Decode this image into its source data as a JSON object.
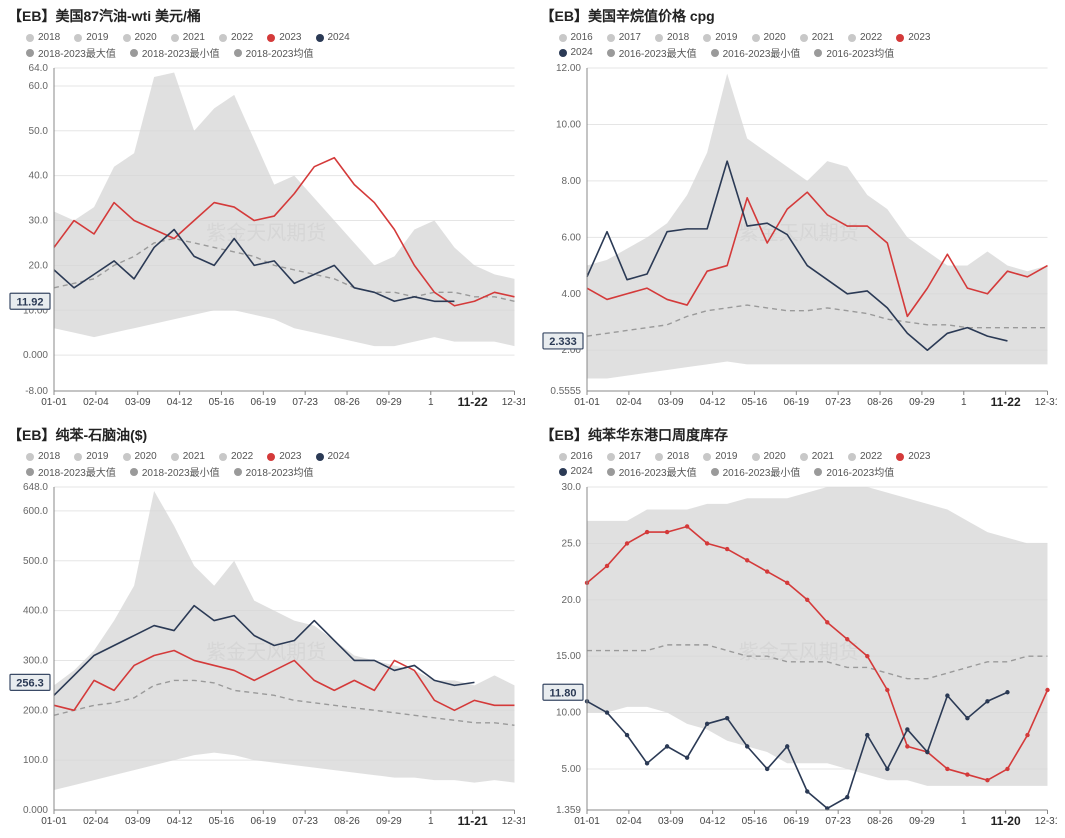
{
  "watermark": "紫金天风期货",
  "common": {
    "x_labels": [
      "01-01",
      "02-04",
      "03-09",
      "04-12",
      "05-16",
      "06-19",
      "07-23",
      "08-26",
      "09-29",
      "1",
      "",
      "12-31"
    ],
    "x_highlight_color": "#222",
    "x_highlight_weight": "bold",
    "tick_color": "#666",
    "tick_fontsize": 10,
    "grid_color": "#e5e5e5",
    "axis_color": "#888",
    "band_fill": "#d6d6d6",
    "band_opacity": 0.75,
    "avg_color": "#9a9a9a",
    "avg_dash": "5,4",
    "year_faded_color": "#c8c8c8",
    "series_2023_color": "#d43a3a",
    "series_2024_color": "#2b3a55",
    "line_width": 1.6,
    "badge_bg": "#e8ecef",
    "badge_border": "#3a4a66",
    "badge_text_color": "#2b3a55"
  },
  "panels": [
    {
      "title": "【EB】美国87汽油-wti 美元/桶",
      "legend_rows": [
        [
          {
            "label": "2018",
            "color": "#c8c8c8"
          },
          {
            "label": "2019",
            "color": "#c8c8c8"
          },
          {
            "label": "2020",
            "color": "#c8c8c8"
          },
          {
            "label": "2021",
            "color": "#c8c8c8"
          },
          {
            "label": "2022",
            "color": "#c8c8c8"
          },
          {
            "label": "2023",
            "color": "#d43a3a"
          },
          {
            "label": "2024",
            "color": "#2b3a55"
          }
        ],
        [
          {
            "label": "2018-2023最大值",
            "color": "#9a9a9a"
          },
          {
            "label": "2018-2023最小值",
            "color": "#9a9a9a"
          },
          {
            "label": "2018-2023均值",
            "color": "#9a9a9a"
          }
        ]
      ],
      "y": {
        "ticks": [
          -8,
          0,
          10,
          20,
          30,
          40,
          50,
          60,
          64
        ]
      },
      "highlight_x_label": "11-22",
      "badge": "11.92",
      "band_max": [
        32,
        30,
        33,
        42,
        45,
        62,
        63,
        50,
        55,
        58,
        48,
        38,
        40,
        35,
        30,
        25,
        20,
        22,
        28,
        30,
        24,
        20,
        18,
        17
      ],
      "band_min": [
        6,
        5,
        4,
        5,
        6,
        7,
        8,
        9,
        10,
        10,
        9,
        8,
        6,
        5,
        4,
        3,
        2,
        2,
        3,
        4,
        3,
        3,
        3,
        2
      ],
      "avg": [
        15,
        16,
        17,
        20,
        22,
        25,
        26,
        25,
        24,
        23,
        22,
        20,
        19,
        18,
        17,
        15,
        14,
        14,
        13,
        14,
        14,
        13,
        13,
        12
      ],
      "s2023": [
        24,
        30,
        27,
        34,
        30,
        28,
        26,
        30,
        34,
        33,
        30,
        31,
        36,
        42,
        44,
        38,
        34,
        28,
        20,
        14,
        11,
        12,
        14,
        13
      ],
      "s2024": [
        19,
        15,
        18,
        21,
        17,
        24,
        28,
        22,
        20,
        26,
        20,
        21,
        16,
        18,
        20,
        15,
        14,
        12,
        13,
        12,
        12,
        null,
        null,
        null
      ]
    },
    {
      "title": "【EB】美国辛烷值价格 cpg",
      "legend_rows": [
        [
          {
            "label": "2016",
            "color": "#c8c8c8"
          },
          {
            "label": "2017",
            "color": "#c8c8c8"
          },
          {
            "label": "2018",
            "color": "#c8c8c8"
          },
          {
            "label": "2019",
            "color": "#c8c8c8"
          },
          {
            "label": "2020",
            "color": "#c8c8c8"
          },
          {
            "label": "2021",
            "color": "#c8c8c8"
          },
          {
            "label": "2022",
            "color": "#c8c8c8"
          },
          {
            "label": "2023",
            "color": "#d43a3a"
          }
        ],
        [
          {
            "label": "2024",
            "color": "#2b3a55"
          },
          {
            "label": "2016-2023最大值",
            "color": "#9a9a9a"
          },
          {
            "label": "2016-2023最小值",
            "color": "#9a9a9a"
          },
          {
            "label": "2016-2023均值",
            "color": "#9a9a9a"
          }
        ]
      ],
      "y": {
        "ticks": [
          0.5555,
          2,
          4,
          6,
          8,
          10,
          12
        ]
      },
      "highlight_x_label": "11-22",
      "badge": "2.333",
      "band_max": [
        5,
        5.2,
        5.6,
        6.0,
        6.5,
        7.5,
        9.0,
        11.8,
        9.5,
        9.0,
        8.5,
        8.0,
        8.7,
        8.5,
        7.5,
        7.0,
        6.0,
        5.5,
        5.0,
        5.0,
        5.5,
        5.0,
        4.8,
        5.0
      ],
      "band_min": [
        1.0,
        1.0,
        1.1,
        1.2,
        1.3,
        1.4,
        1.5,
        1.6,
        1.5,
        1.5,
        1.5,
        1.5,
        1.5,
        1.5,
        1.5,
        1.5,
        1.5,
        1.5,
        1.5,
        1.5,
        1.5,
        1.5,
        1.5,
        1.5
      ],
      "avg": [
        2.5,
        2.6,
        2.7,
        2.8,
        2.9,
        3.2,
        3.4,
        3.5,
        3.6,
        3.5,
        3.4,
        3.4,
        3.5,
        3.4,
        3.3,
        3.1,
        3.0,
        2.9,
        2.9,
        2.8,
        2.8,
        2.8,
        2.8,
        2.8
      ],
      "s2023": [
        4.2,
        3.8,
        4.0,
        4.2,
        3.8,
        3.6,
        4.8,
        5.0,
        7.4,
        5.8,
        7.0,
        7.6,
        6.8,
        6.4,
        6.4,
        5.8,
        3.2,
        4.2,
        5.4,
        4.2,
        4.0,
        4.8,
        4.6,
        5.0
      ],
      "s2024": [
        4.6,
        6.2,
        4.5,
        4.7,
        6.2,
        6.3,
        6.3,
        8.7,
        6.4,
        6.5,
        6.1,
        5.0,
        4.5,
        4.0,
        4.1,
        3.5,
        2.6,
        2.0,
        2.6,
        2.8,
        2.5,
        2.33,
        null,
        null
      ]
    },
    {
      "title": "【EB】纯苯-石脑油($)",
      "legend_rows": [
        [
          {
            "label": "2018",
            "color": "#c8c8c8"
          },
          {
            "label": "2019",
            "color": "#c8c8c8"
          },
          {
            "label": "2020",
            "color": "#c8c8c8"
          },
          {
            "label": "2021",
            "color": "#c8c8c8"
          },
          {
            "label": "2022",
            "color": "#c8c8c8"
          },
          {
            "label": "2023",
            "color": "#d43a3a"
          },
          {
            "label": "2024",
            "color": "#2b3a55"
          }
        ],
        [
          {
            "label": "2018-2023最大值",
            "color": "#9a9a9a"
          },
          {
            "label": "2018-2023最小值",
            "color": "#9a9a9a"
          },
          {
            "label": "2018-2023均值",
            "color": "#9a9a9a"
          }
        ]
      ],
      "y": {
        "ticks": [
          0,
          100,
          200,
          300,
          400,
          500,
          600,
          648
        ]
      },
      "highlight_x_label": "11-21",
      "badge": "256.3",
      "band_max": [
        250,
        280,
        320,
        380,
        450,
        640,
        570,
        490,
        450,
        500,
        420,
        400,
        380,
        370,
        340,
        310,
        300,
        290,
        280,
        260,
        260,
        250,
        270,
        250
      ],
      "band_min": [
        40,
        50,
        60,
        70,
        80,
        90,
        100,
        110,
        115,
        110,
        100,
        95,
        90,
        85,
        80,
        75,
        70,
        65,
        65,
        60,
        60,
        55,
        60,
        55
      ],
      "avg": [
        190,
        200,
        210,
        215,
        225,
        250,
        260,
        260,
        255,
        240,
        235,
        230,
        220,
        215,
        210,
        205,
        200,
        195,
        190,
        185,
        180,
        175,
        175,
        170
      ],
      "s2023": [
        210,
        200,
        260,
        240,
        290,
        310,
        320,
        300,
        290,
        280,
        260,
        280,
        300,
        260,
        240,
        260,
        240,
        300,
        280,
        220,
        200,
        220,
        210,
        210
      ],
      "s2024": [
        230,
        270,
        310,
        330,
        350,
        370,
        360,
        410,
        380,
        390,
        350,
        330,
        340,
        380,
        340,
        300,
        300,
        280,
        290,
        260,
        250,
        256,
        null,
        null
      ]
    },
    {
      "title": "【EB】纯苯华东港口周度库存",
      "legend_rows": [
        [
          {
            "label": "2016",
            "color": "#c8c8c8"
          },
          {
            "label": "2017",
            "color": "#c8c8c8"
          },
          {
            "label": "2018",
            "color": "#c8c8c8"
          },
          {
            "label": "2019",
            "color": "#c8c8c8"
          },
          {
            "label": "2020",
            "color": "#c8c8c8"
          },
          {
            "label": "2021",
            "color": "#c8c8c8"
          },
          {
            "label": "2022",
            "color": "#c8c8c8"
          },
          {
            "label": "2023",
            "color": "#d43a3a"
          }
        ],
        [
          {
            "label": "2024",
            "color": "#2b3a55"
          },
          {
            "label": "2016-2023最大值",
            "color": "#9a9a9a"
          },
          {
            "label": "2016-2023最小值",
            "color": "#9a9a9a"
          },
          {
            "label": "2016-2023均值",
            "color": "#9a9a9a"
          }
        ]
      ],
      "y": {
        "ticks": [
          1.359,
          5,
          10,
          15,
          20,
          25,
          30
        ]
      },
      "highlight_x_label": "11-20",
      "badge": "11.80",
      "band_max": [
        27,
        27,
        27,
        28,
        28,
        28,
        28.5,
        28.5,
        29,
        29,
        29,
        29.5,
        30,
        30,
        30,
        29.5,
        29,
        28.5,
        28,
        27,
        26,
        25.5,
        25,
        25
      ],
      "band_min": [
        10,
        10,
        10.5,
        10.5,
        10,
        9,
        8.5,
        7.5,
        7,
        6.5,
        5.5,
        5.5,
        5.5,
        5,
        4.5,
        4,
        4,
        3.5,
        3.5,
        3.5,
        3.5,
        3.5,
        3.5,
        3.5
      ],
      "avg": [
        15.5,
        15.5,
        15.5,
        15.5,
        16,
        16,
        16,
        15.5,
        15,
        15,
        14.5,
        14.5,
        14.5,
        14,
        14,
        13.5,
        13,
        13,
        13.5,
        14,
        14.5,
        14.5,
        15,
        15
      ],
      "s2023": [
        21.5,
        23,
        25,
        26,
        26,
        26.5,
        25,
        24.5,
        23.5,
        22.5,
        21.5,
        20,
        18,
        16.5,
        15,
        12,
        7,
        6.5,
        5,
        4.5,
        4,
        5,
        8,
        12
      ],
      "s2024": [
        11,
        10,
        8,
        5.5,
        7,
        6,
        9,
        9.5,
        7,
        5,
        7,
        3,
        1.5,
        2.5,
        8,
        5,
        8.5,
        6.5,
        11.5,
        9.5,
        11,
        11.8,
        null,
        null
      ],
      "markers_2023": true,
      "markers_2024": true
    }
  ]
}
